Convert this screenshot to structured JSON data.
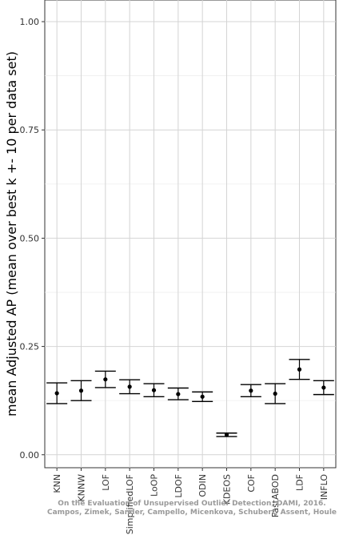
{
  "chart_data": {
    "type": "scatter",
    "title": "",
    "xlabel": "",
    "ylabel": "mean Adjusted AP (mean over best k +- 10 per data set)",
    "ylim": [
      -0.03,
      1.05
    ],
    "yticks": [
      0.0,
      0.25,
      0.5,
      0.75,
      1.0
    ],
    "ytick_labels": [
      "0.00",
      "0.25",
      "0.50",
      "0.75",
      "1.00"
    ],
    "grid": true,
    "error_bars": true,
    "categories": [
      "KNN",
      "KNNW",
      "LOF",
      "SimplifiedLOF",
      "LoOP",
      "LDOF",
      "ODIN",
      "KDEOS",
      "COF",
      "FastABOD",
      "LDF",
      "INFLO"
    ],
    "series": [
      {
        "values": [
          0.142,
          0.148,
          0.174,
          0.157,
          0.149,
          0.14,
          0.134,
          0.046,
          0.148,
          0.141,
          0.197,
          0.155
        ],
        "lower": [
          0.118,
          0.125,
          0.155,
          0.141,
          0.134,
          0.127,
          0.123,
          0.042,
          0.134,
          0.118,
          0.174,
          0.139
        ],
        "upper": [
          0.166,
          0.171,
          0.193,
          0.173,
          0.164,
          0.154,
          0.145,
          0.05,
          0.162,
          0.164,
          0.22,
          0.171
        ]
      }
    ]
  },
  "watermark": {
    "line1": "On the Evaluation of Unsupervised Outlier Detection, DAMI, 2016.",
    "line2": "Campos, Zimek, Sander, Campello, Micenkova, Schubert, Assent, Houle"
  }
}
